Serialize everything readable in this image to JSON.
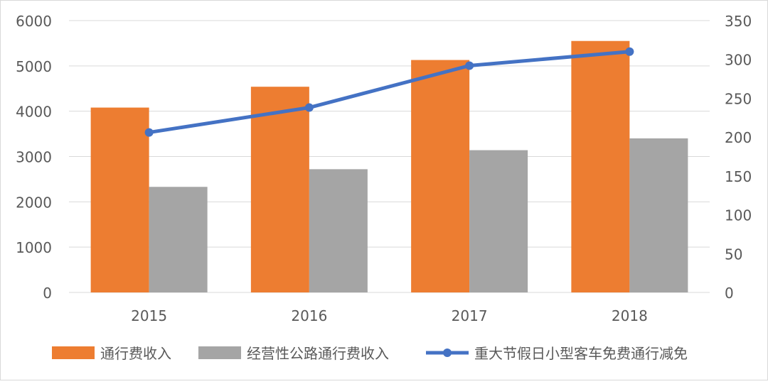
{
  "chart_data": {
    "type": "bar+line",
    "categories": [
      "2015",
      "2016",
      "2017",
      "2018"
    ],
    "series": [
      {
        "name": "通行费收入",
        "type": "bar",
        "axis": "left",
        "color": "#ED7D31",
        "values": [
          4080,
          4540,
          5130,
          5550
        ]
      },
      {
        "name": "经营性公路通行费收入",
        "type": "bar",
        "axis": "left",
        "color": "#A5A5A5",
        "values": [
          2330,
          2720,
          3140,
          3400
        ]
      },
      {
        "name": "重大节假日小型客车免费通行减免",
        "type": "line",
        "axis": "right",
        "color": "#4472C4",
        "values": [
          206,
          238,
          292,
          310
        ]
      }
    ],
    "y_left": {
      "min": 0,
      "max": 6000,
      "ticks": [
        "0",
        "1000",
        "2000",
        "3000",
        "4000",
        "5000",
        "6000"
      ]
    },
    "y_right": {
      "min": 0,
      "max": 350,
      "ticks": [
        "0",
        "50",
        "100",
        "150",
        "200",
        "250",
        "300",
        "350"
      ]
    },
    "grid": true,
    "legend_position": "bottom"
  }
}
